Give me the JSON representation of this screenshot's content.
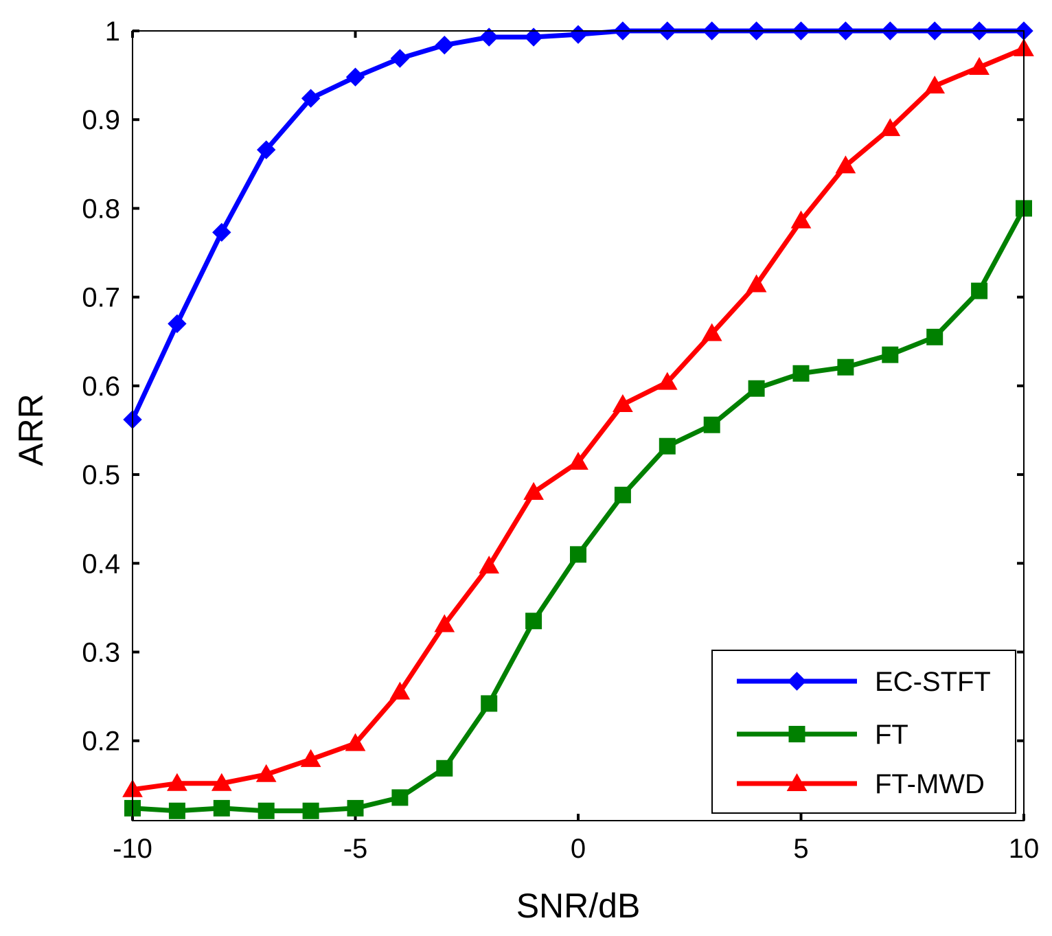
{
  "chart_data": {
    "type": "line",
    "title": "",
    "xlabel": "SNR/dB",
    "ylabel": "ARR",
    "xlim": [
      -10,
      10
    ],
    "ylim": [
      0.11,
      1.0
    ],
    "xticks": [
      -10,
      -5,
      0,
      5,
      10
    ],
    "xtick_labels": [
      "-10",
      "-5",
      "0",
      "5",
      "10"
    ],
    "yticks": [
      0.2,
      0.3,
      0.4,
      0.5,
      0.6,
      0.7,
      0.8,
      0.9,
      1.0
    ],
    "ytick_labels": [
      "0.2",
      "0.3",
      "0.4",
      "0.5",
      "0.6",
      "0.7",
      "0.8",
      "0.9",
      "1"
    ],
    "grid": false,
    "legend_position": "bottom-right",
    "x": [
      -10,
      -9,
      -8,
      -7,
      -6,
      -5,
      -4,
      -3,
      -2,
      -1,
      0,
      1,
      2,
      3,
      4,
      5,
      6,
      7,
      8,
      9,
      10
    ],
    "series": [
      {
        "name": "EC-STFT",
        "color": "#0000ff",
        "marker": "diamond",
        "values": [
          0.562,
          0.67,
          0.773,
          0.866,
          0.924,
          0.948,
          0.969,
          0.984,
          0.993,
          0.993,
          0.996,
          1.0,
          1.0,
          1.0,
          1.0,
          1.0,
          1.0,
          1.0,
          1.0,
          1.0,
          1.0
        ]
      },
      {
        "name": "FT",
        "color": "#008000",
        "marker": "square",
        "values": [
          0.124,
          0.121,
          0.124,
          0.121,
          0.121,
          0.124,
          0.136,
          0.169,
          0.242,
          0.335,
          0.41,
          0.477,
          0.532,
          0.556,
          0.597,
          0.614,
          0.621,
          0.635,
          0.655,
          0.707,
          0.8
        ]
      },
      {
        "name": "FT-MWD",
        "color": "#ff0000",
        "marker": "triangle",
        "values": [
          0.145,
          0.152,
          0.152,
          0.162,
          0.179,
          0.197,
          0.255,
          0.331,
          0.397,
          0.48,
          0.514,
          0.579,
          0.604,
          0.659,
          0.714,
          0.786,
          0.848,
          0.89,
          0.938,
          0.959,
          0.98
        ]
      }
    ]
  }
}
